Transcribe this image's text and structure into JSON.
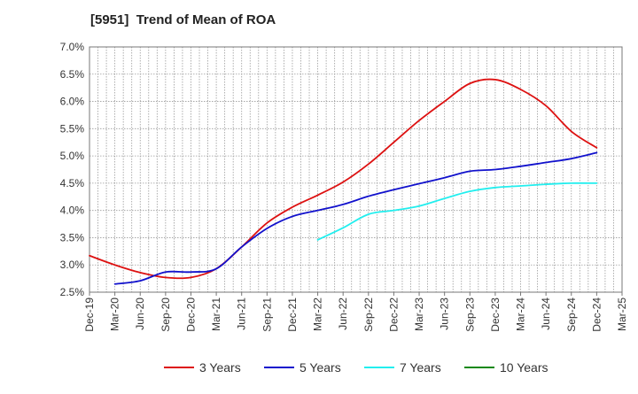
{
  "chart_data": {
    "type": "line",
    "title": "[5951]  Trend of Mean of ROA",
    "xlabel": "",
    "ylabel": "",
    "ylim": [
      2.5,
      7.0
    ],
    "y_ticks": [
      "2.5%",
      "3.0%",
      "3.5%",
      "4.0%",
      "4.5%",
      "5.0%",
      "5.5%",
      "6.0%",
      "6.5%",
      "7.0%"
    ],
    "y_tick_values": [
      2.5,
      3.0,
      3.5,
      4.0,
      4.5,
      5.0,
      5.5,
      6.0,
      6.5,
      7.0
    ],
    "categories": [
      "Dec-19",
      "Mar-20",
      "Jun-20",
      "Sep-20",
      "Dec-20",
      "Mar-21",
      "Jun-21",
      "Sep-21",
      "Dec-21",
      "Mar-22",
      "Jun-22",
      "Sep-22",
      "Dec-22",
      "Mar-23",
      "Jun-23",
      "Sep-23",
      "Dec-23",
      "Mar-24",
      "Jun-24",
      "Sep-24",
      "Dec-24",
      "Mar-25"
    ],
    "grid": true,
    "legend_position": "bottom",
    "series": [
      {
        "name": "3 Years",
        "color": "#dd1111",
        "values": [
          3.17,
          3.0,
          2.86,
          2.77,
          2.77,
          2.93,
          3.33,
          3.77,
          4.06,
          4.28,
          4.52,
          4.85,
          5.25,
          5.65,
          6.0,
          6.33,
          6.4,
          6.22,
          5.92,
          5.45,
          5.15,
          null
        ]
      },
      {
        "name": "5 Years",
        "color": "#1111cc",
        "values": [
          null,
          2.65,
          2.71,
          2.87,
          2.87,
          2.93,
          3.33,
          3.67,
          3.89,
          4.0,
          4.11,
          4.26,
          4.38,
          4.49,
          4.6,
          4.72,
          4.75,
          4.81,
          4.88,
          4.95,
          5.06,
          null
        ]
      },
      {
        "name": "7 Years",
        "color": "#22eeee",
        "values": [
          null,
          null,
          null,
          null,
          null,
          null,
          null,
          null,
          null,
          3.46,
          3.68,
          3.93,
          4.0,
          4.08,
          4.22,
          4.35,
          4.42,
          4.45,
          4.48,
          4.5,
          4.5,
          null
        ]
      },
      {
        "name": "10 Years",
        "color": "#118811",
        "values": [
          null,
          null,
          null,
          null,
          null,
          null,
          null,
          null,
          null,
          null,
          null,
          null,
          null,
          null,
          null,
          null,
          null,
          null,
          null,
          null,
          null,
          null
        ]
      }
    ]
  }
}
